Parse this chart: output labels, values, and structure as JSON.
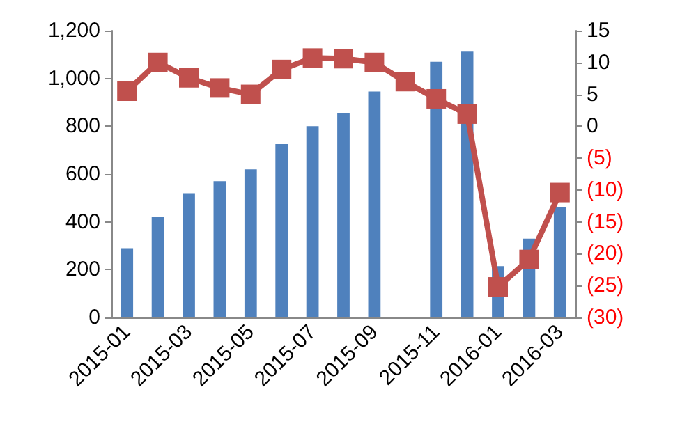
{
  "chart_data": {
    "type": "bar",
    "categories": [
      "2015-01",
      null,
      "2015-03",
      null,
      "2015-05",
      null,
      "2015-07",
      null,
      "2015-09",
      null,
      "2015-11",
      null,
      "2016-01",
      null,
      "2016-03"
    ],
    "series": [
      {
        "color": "#4f81bd",
        "values": [
          290,
          420,
          520,
          570,
          620,
          725,
          800,
          855,
          945,
          null,
          1070,
          1115,
          215,
          330,
          460
        ]
      },
      {
        "type": "line",
        "axis": "y2",
        "color": "#c0504d",
        "marker": "square",
        "values": [
          5.5,
          10,
          7.6,
          6,
          5,
          8.9,
          10.7,
          10.6,
          10,
          7,
          4.3,
          1.9,
          -25.2,
          -20.9,
          -10.4
        ]
      }
    ],
    "ylim": [
      0,
      1200
    ],
    "yticks": [
      0,
      {
        "value": 200,
        "label": "200"
      },
      {
        "value": 400,
        "label": "400"
      },
      {
        "value": 600,
        "label": "600"
      },
      {
        "value": 800,
        "label": "800"
      },
      {
        "value": 1000,
        "label": "1,000"
      },
      {
        "value": 1200,
        "label": "1,200"
      }
    ],
    "y2lim": [
      -30,
      15
    ],
    "y2ticks": [
      {
        "value": -30,
        "label": "(30)"
      },
      {
        "value": -25,
        "label": "(25)"
      },
      {
        "value": -20,
        "label": "(20)"
      },
      {
        "value": -15,
        "label": "(15)"
      },
      {
        "value": -10,
        "label": "(10)"
      },
      {
        "value": -5,
        "label": "(5)"
      },
      0,
      5,
      10,
      15
    ],
    "grid": false
  }
}
